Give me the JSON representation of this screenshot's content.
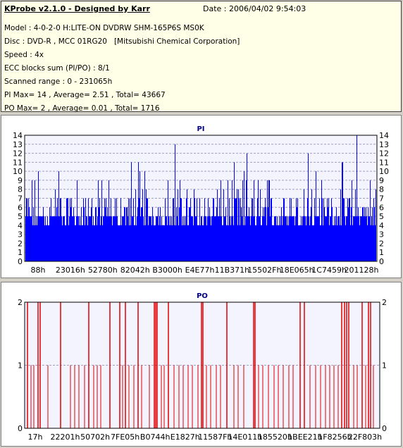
{
  "info": {
    "title": "KProbe v2.1.0 - Designed by Karr",
    "date": "Date : 2006/04/02 9:54:03",
    "lines": [
      "Model : 4-0-2-0 H:LITE-ON DVDRW SHM-165P6S MS0K",
      "Disc : DVD-R , MCC 01RG20   [Mitsubishi Chemical Corporation]",
      "Speed : 4x",
      "ECC blocks sum (PI/PO) : 8/1",
      "Scanned range : 0 - 231065h",
      "PI Max= 14 , Average= 2.51 , Total= 43667",
      "PO Max= 2 , Average= 0.01 , Total= 1716"
    ]
  },
  "colors": {
    "pi_fill": "#0000ff",
    "po_line": "#e00000",
    "plot_bg": "#f4f4ff",
    "grid": "#a0a0c0"
  },
  "chart_data": [
    {
      "type": "bar",
      "title": "PI",
      "ylim": [
        0,
        14
      ],
      "y_ticks": [
        "0",
        "1",
        "2",
        "3",
        "4",
        "5",
        "6",
        "7",
        "8",
        "9",
        "10",
        "11",
        "12",
        "13",
        "14"
      ],
      "x_tick_labels": [
        "88h",
        "23016h",
        "52780h",
        "82042h",
        "B3000h",
        "E4E77h",
        "11B371h",
        "15502Fh",
        "18E065h",
        "1C7459h",
        "201128h"
      ],
      "grid": true,
      "summary": {
        "max": 14,
        "average": 2.51
      }
    },
    {
      "type": "bar",
      "title": "PO",
      "ylim": [
        0,
        2
      ],
      "y_ticks": [
        "0",
        "1",
        "2"
      ],
      "x_tick_labels": [
        "17h",
        "22201h",
        "50702h",
        "7FE05h",
        "B0744h",
        "E1827h",
        "11587Fh",
        "14E011h",
        "185520h",
        "1BEE21h",
        "1F8256h",
        "22F803h"
      ],
      "grid": true,
      "summary": {
        "max": 2,
        "average": 0.01
      }
    }
  ]
}
